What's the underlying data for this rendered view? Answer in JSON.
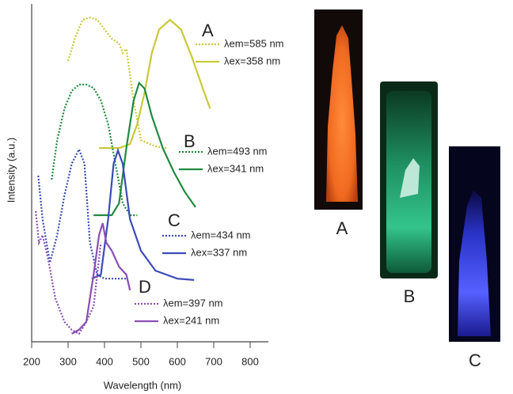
{
  "chart_data": {
    "type": "line",
    "xlabel": "Wavelength (nm)",
    "ylabel": "Intensity (a.u.)",
    "xlim": [
      200,
      850
    ],
    "xticks": [
      200,
      300,
      400,
      500,
      600,
      700,
      800
    ],
    "ylim": [
      0,
      100
    ],
    "series": [
      {
        "name": "λem=585 nm",
        "group": "A",
        "style": "dotted",
        "color": "#c9c93a",
        "x": [
          300,
          320,
          340,
          360,
          380,
          400,
          420,
          440,
          450,
          460,
          480,
          500,
          540,
          570
        ],
        "values": [
          84.5,
          91.7,
          96.9,
          97.6,
          96.9,
          94.0,
          91.2,
          89.8,
          86.9,
          88.1,
          72.6,
          60.7,
          58.8,
          58.3
        ]
      },
      {
        "name": "λex=358 nm",
        "group": "A",
        "style": "solid",
        "color": "#c9c93a",
        "x": [
          385,
          440,
          470,
          490,
          510,
          530,
          550,
          580,
          610,
          640,
          670,
          690
        ],
        "values": [
          58.3,
          58.3,
          59.5,
          65.5,
          75,
          86.9,
          94,
          96.9,
          94,
          85.7,
          76.2,
          70.2
        ]
      },
      {
        "name": "λem=493 nm",
        "group": "B",
        "style": "dotted",
        "color": "#1f8a3e",
        "x": [
          255,
          270,
          290,
          310,
          330,
          350,
          370,
          390,
          410,
          430,
          450,
          470,
          490
        ],
        "values": [
          48.8,
          60.7,
          70.2,
          75.5,
          77.4,
          77.4,
          76.4,
          72.6,
          65.5,
          53.6,
          41.7,
          38.1,
          38.1
        ]
      },
      {
        "name": "λex=341 nm",
        "group": "B",
        "style": "solid",
        "color": "#1f8a3e",
        "x": [
          370,
          420,
          440,
          460,
          480,
          495,
          510,
          530,
          560,
          590,
          620,
          650
        ],
        "values": [
          38.1,
          38.1,
          41.7,
          58.3,
          72.6,
          77.9,
          76.2,
          67.9,
          58.3,
          51.2,
          45.2,
          40.5
        ]
      },
      {
        "name": "λem=434 nm",
        "group": "C",
        "style": "dotted",
        "color": "#3a4bb5",
        "x": [
          218,
          230,
          250,
          270,
          290,
          310,
          330,
          345,
          360,
          380,
          400,
          430,
          460
        ],
        "values": [
          50,
          36.9,
          23.8,
          32.1,
          44,
          53.6,
          57.9,
          53.6,
          29.8,
          20.2,
          19,
          19,
          19
        ]
      },
      {
        "name": "λex=337 nm",
        "group": "C",
        "style": "solid",
        "color": "#3a4bb5",
        "x": [
          365,
          390,
          410,
          425,
          437,
          450,
          470,
          500,
          540,
          600,
          646
        ],
        "values": [
          19,
          20.2,
          36.9,
          53.6,
          57.6,
          53.6,
          36.9,
          27.4,
          21.4,
          19,
          18.6
        ]
      },
      {
        "name": "λem=397 nm",
        "group": "D",
        "style": "dotted",
        "color": "#8a4fb3",
        "x": [
          211,
          220,
          230,
          245,
          265,
          290,
          310,
          330,
          350,
          370,
          380,
          390
        ],
        "values": [
          39.3,
          29.8,
          32.1,
          25,
          13.1,
          6,
          3.6,
          2.4,
          6,
          10.7,
          20.2,
          29.8
        ]
      },
      {
        "name": "λex=241 nm",
        "group": "D",
        "style": "solid",
        "color": "#8a4fb3",
        "x": [
          310,
          330,
          350,
          370,
          385,
          395,
          405,
          420,
          440,
          460,
          470
        ],
        "values": [
          2.4,
          3.6,
          6,
          20.2,
          32.1,
          35.7,
          29.8,
          27.4,
          22.6,
          20.2,
          15.5
        ]
      }
    ],
    "group_labels": [
      "A",
      "B",
      "C",
      "D"
    ]
  },
  "photos": {
    "labels": [
      "A",
      "B",
      "C"
    ]
  }
}
